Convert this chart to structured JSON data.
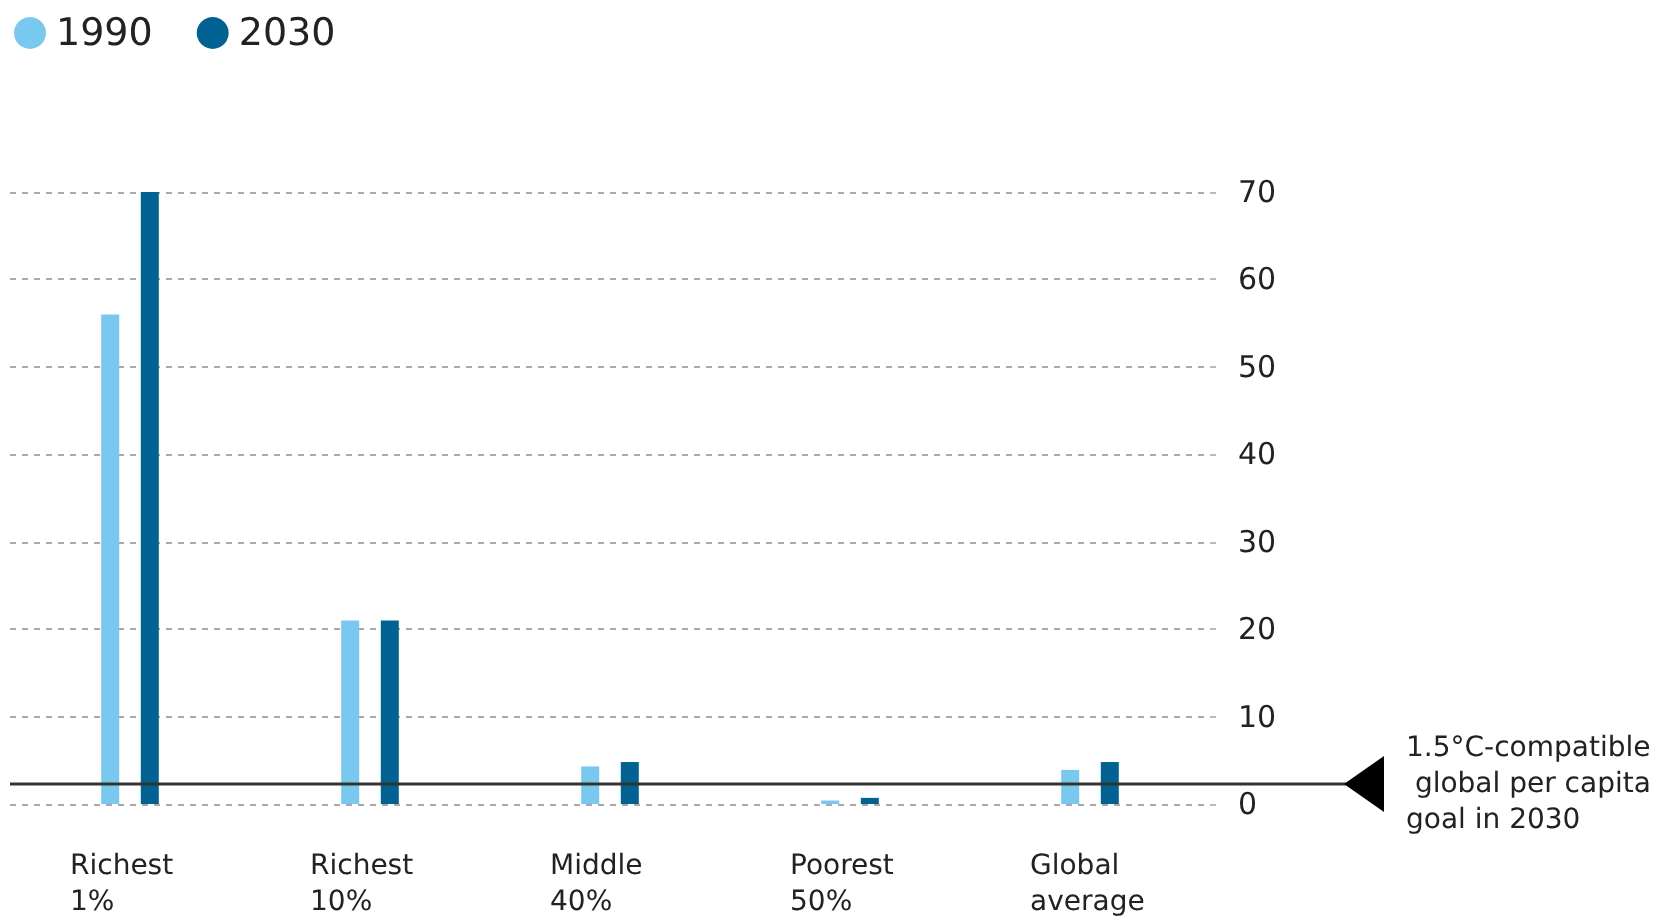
{
  "chart_data": {
    "type": "bar",
    "categories": [
      "Richest 1%",
      "Richest 10%",
      "Middle 40%",
      "Poorest 50%",
      "Global average"
    ],
    "series": [
      {
        "name": "1990",
        "color": "#79c8ef",
        "values": [
          56,
          21,
          4.3,
          0.4,
          3.9
        ]
      },
      {
        "name": "2030",
        "color": "#006193",
        "values": [
          70,
          21,
          4.8,
          0.7,
          4.8
        ]
      }
    ],
    "ylim": [
      0,
      70
    ],
    "yticks": [
      0,
      10,
      20,
      30,
      40,
      50,
      60,
      70
    ],
    "grid": "y",
    "legend": "top left",
    "ref_lines": [
      {
        "axis": "y",
        "value": 2.3,
        "label": "1.5°C-compatible global per capita goal in 2030",
        "color": "#333333",
        "line_style": "solid"
      }
    ]
  }
}
